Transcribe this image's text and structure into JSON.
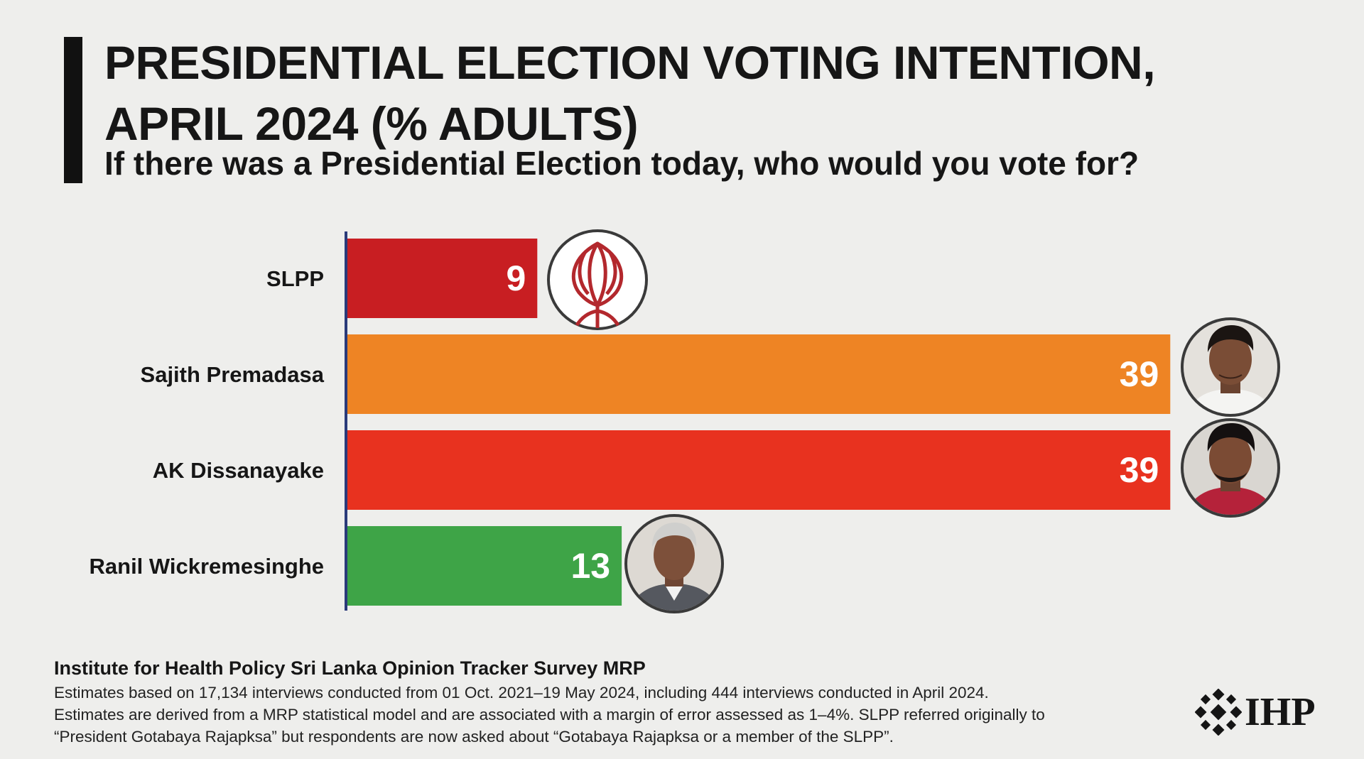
{
  "title_line1": "PRESIDENTIAL ELECTION VOTING INTENTION,",
  "title_line2": "APRIL 2024 (% ADULTS)",
  "subtitle": "If there was a Presidential Election today, who would you vote for?",
  "chart_data": {
    "type": "bar",
    "orientation": "horizontal",
    "title": "PRESIDENTIAL ELECTION VOTING INTENTION, APRIL 2024 (% ADULTS)",
    "categories": [
      "SLPP",
      "Sajith Premadasa",
      "AK Dissanayake",
      "Ranil Wickremesinghe"
    ],
    "values": [
      9,
      39,
      39,
      13
    ],
    "colors": [
      "#c81e22",
      "#ee8424",
      "#e8321f",
      "#3ea447"
    ],
    "xlim": [
      0,
      40
    ],
    "grid": false,
    "legend": false
  },
  "images": {
    "slpp": "slpp-lotus-bud-icon",
    "sajith": "sajith-premadasa-portrait",
    "akd": "ak-dissanayake-portrait",
    "ranil": "ranil-wickremesinghe-portrait"
  },
  "footer": {
    "source": "Institute for Health Policy Sri Lanka Opinion Tracker Survey MRP",
    "line1": "Estimates based on 17,134 interviews conducted from 01 Oct. 2021–19 May 2024, including 444 interviews conducted in April 2024.",
    "line2": "Estimates are derived from a MRP statistical model and are associated with a margin of error assessed as 1–4%. SLPP referred originally to",
    "line3": "“President Gotabaya Rajapksa” but respondents are now asked about “Gotabaya Rajapksa or a member of the SLPP”."
  },
  "logo": {
    "text": "IHP"
  }
}
